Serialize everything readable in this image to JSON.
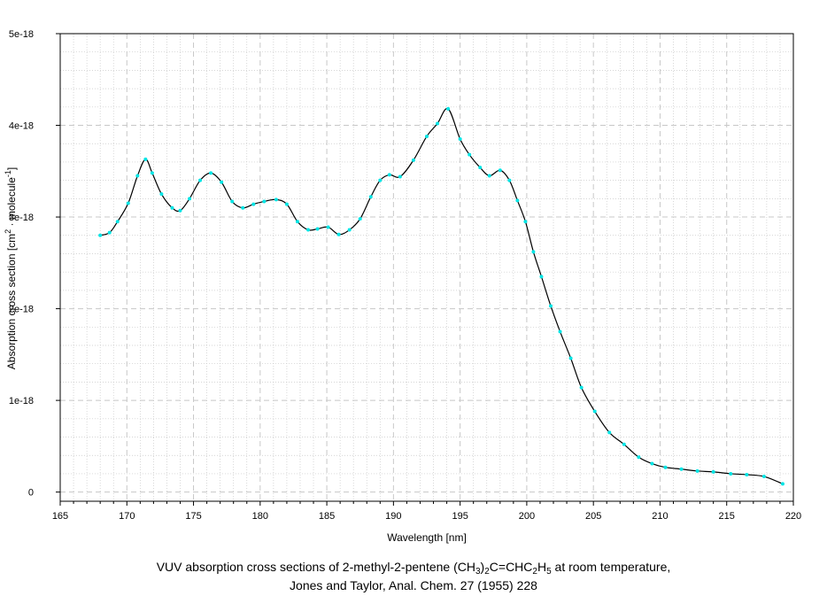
{
  "chart_data": {
    "type": "line",
    "title": "",
    "xlabel": "Wavelength [nm]",
    "ylabel": {
      "prefix": "Absorption cross section [cm",
      "sup1": "2",
      "middle": " · molecule",
      "sup2": "-1",
      "suffix": "]"
    },
    "xlim": [
      165,
      220
    ],
    "ylim": [
      -1e-19,
      5e-18
    ],
    "xticks": [
      165,
      170,
      175,
      180,
      185,
      190,
      195,
      200,
      205,
      210,
      215,
      220
    ],
    "xtick_labels": [
      "165",
      "170",
      "175",
      "180",
      "185",
      "190",
      "195",
      "200",
      "205",
      "210",
      "215",
      "220"
    ],
    "yticks": [
      0,
      1e-18,
      2e-18,
      3e-18,
      4e-18,
      5e-18
    ],
    "ytick_labels": [
      "0",
      "1e-18",
      "2e-18",
      "3e-18",
      "4e-18",
      "5e-18"
    ],
    "grid": true,
    "line_color": "#000000",
    "marker_color": "#00e5e5",
    "grid_color": "#c8c8c8",
    "series": [
      {
        "x": [
          168.0,
          168.7,
          169.3,
          170.1,
          170.8,
          171.4,
          171.9,
          172.6,
          173.4,
          174.0,
          174.7,
          175.5,
          176.3,
          177.1,
          177.9,
          178.7,
          179.5,
          180.3,
          181.2,
          182.0,
          182.8,
          183.6,
          184.3,
          185.1,
          185.9,
          186.7,
          187.5,
          188.3,
          189.0,
          189.7,
          190.5,
          191.5,
          192.5,
          193.3,
          194.1,
          195.0,
          195.7,
          196.5,
          197.2,
          198.0,
          198.7,
          199.3,
          199.9,
          200.5,
          201.1,
          201.8,
          202.5,
          203.3,
          204.1,
          205.1,
          206.2,
          207.3,
          208.4,
          209.4,
          210.4,
          211.6,
          212.8,
          214.0,
          215.3,
          216.5,
          217.8,
          219.2
        ],
        "y": [
          2.8e-18,
          2.83e-18,
          2.95e-18,
          3.15e-18,
          3.45e-18,
          3.63e-18,
          3.48e-18,
          3.25e-18,
          3.1e-18,
          3.07e-18,
          3.2e-18,
          3.4e-18,
          3.48e-18,
          3.38e-18,
          3.17e-18,
          3.1e-18,
          3.14e-18,
          3.17e-18,
          3.19e-18,
          3.14e-18,
          2.95e-18,
          2.86e-18,
          2.87e-18,
          2.89e-18,
          2.81e-18,
          2.86e-18,
          2.98e-18,
          3.22e-18,
          3.4e-18,
          3.46e-18,
          3.44e-18,
          3.62e-18,
          3.88e-18,
          4.02e-18,
          4.18e-18,
          3.85e-18,
          3.68e-18,
          3.54e-18,
          3.45e-18,
          3.51e-18,
          3.4e-18,
          3.18e-18,
          2.95e-18,
          2.62e-18,
          2.35e-18,
          2.03e-18,
          1.75e-18,
          1.46e-18,
          1.14e-18,
          8.8e-19,
          6.5e-19,
          5.2e-19,
          3.8e-19,
          3.1e-19,
          2.7e-19,
          2.5e-19,
          2.3e-19,
          2.2e-19,
          2e-19,
          1.9e-19,
          1.7e-19,
          9e-20
        ]
      }
    ]
  },
  "caption": {
    "line1_a": "VUV absorption cross sections of 2-methyl-2-pentene (CH",
    "line1_sub1": "3",
    "line1_b": ")",
    "line1_sub2": "2",
    "line1_c": "C=CHC",
    "line1_sub3": "2",
    "line1_d": "H",
    "line1_sub4": "5",
    "line1_e": " at room temperature,",
    "line2": "Jones and Taylor, Anal. Chem. 27 (1955) 228"
  }
}
